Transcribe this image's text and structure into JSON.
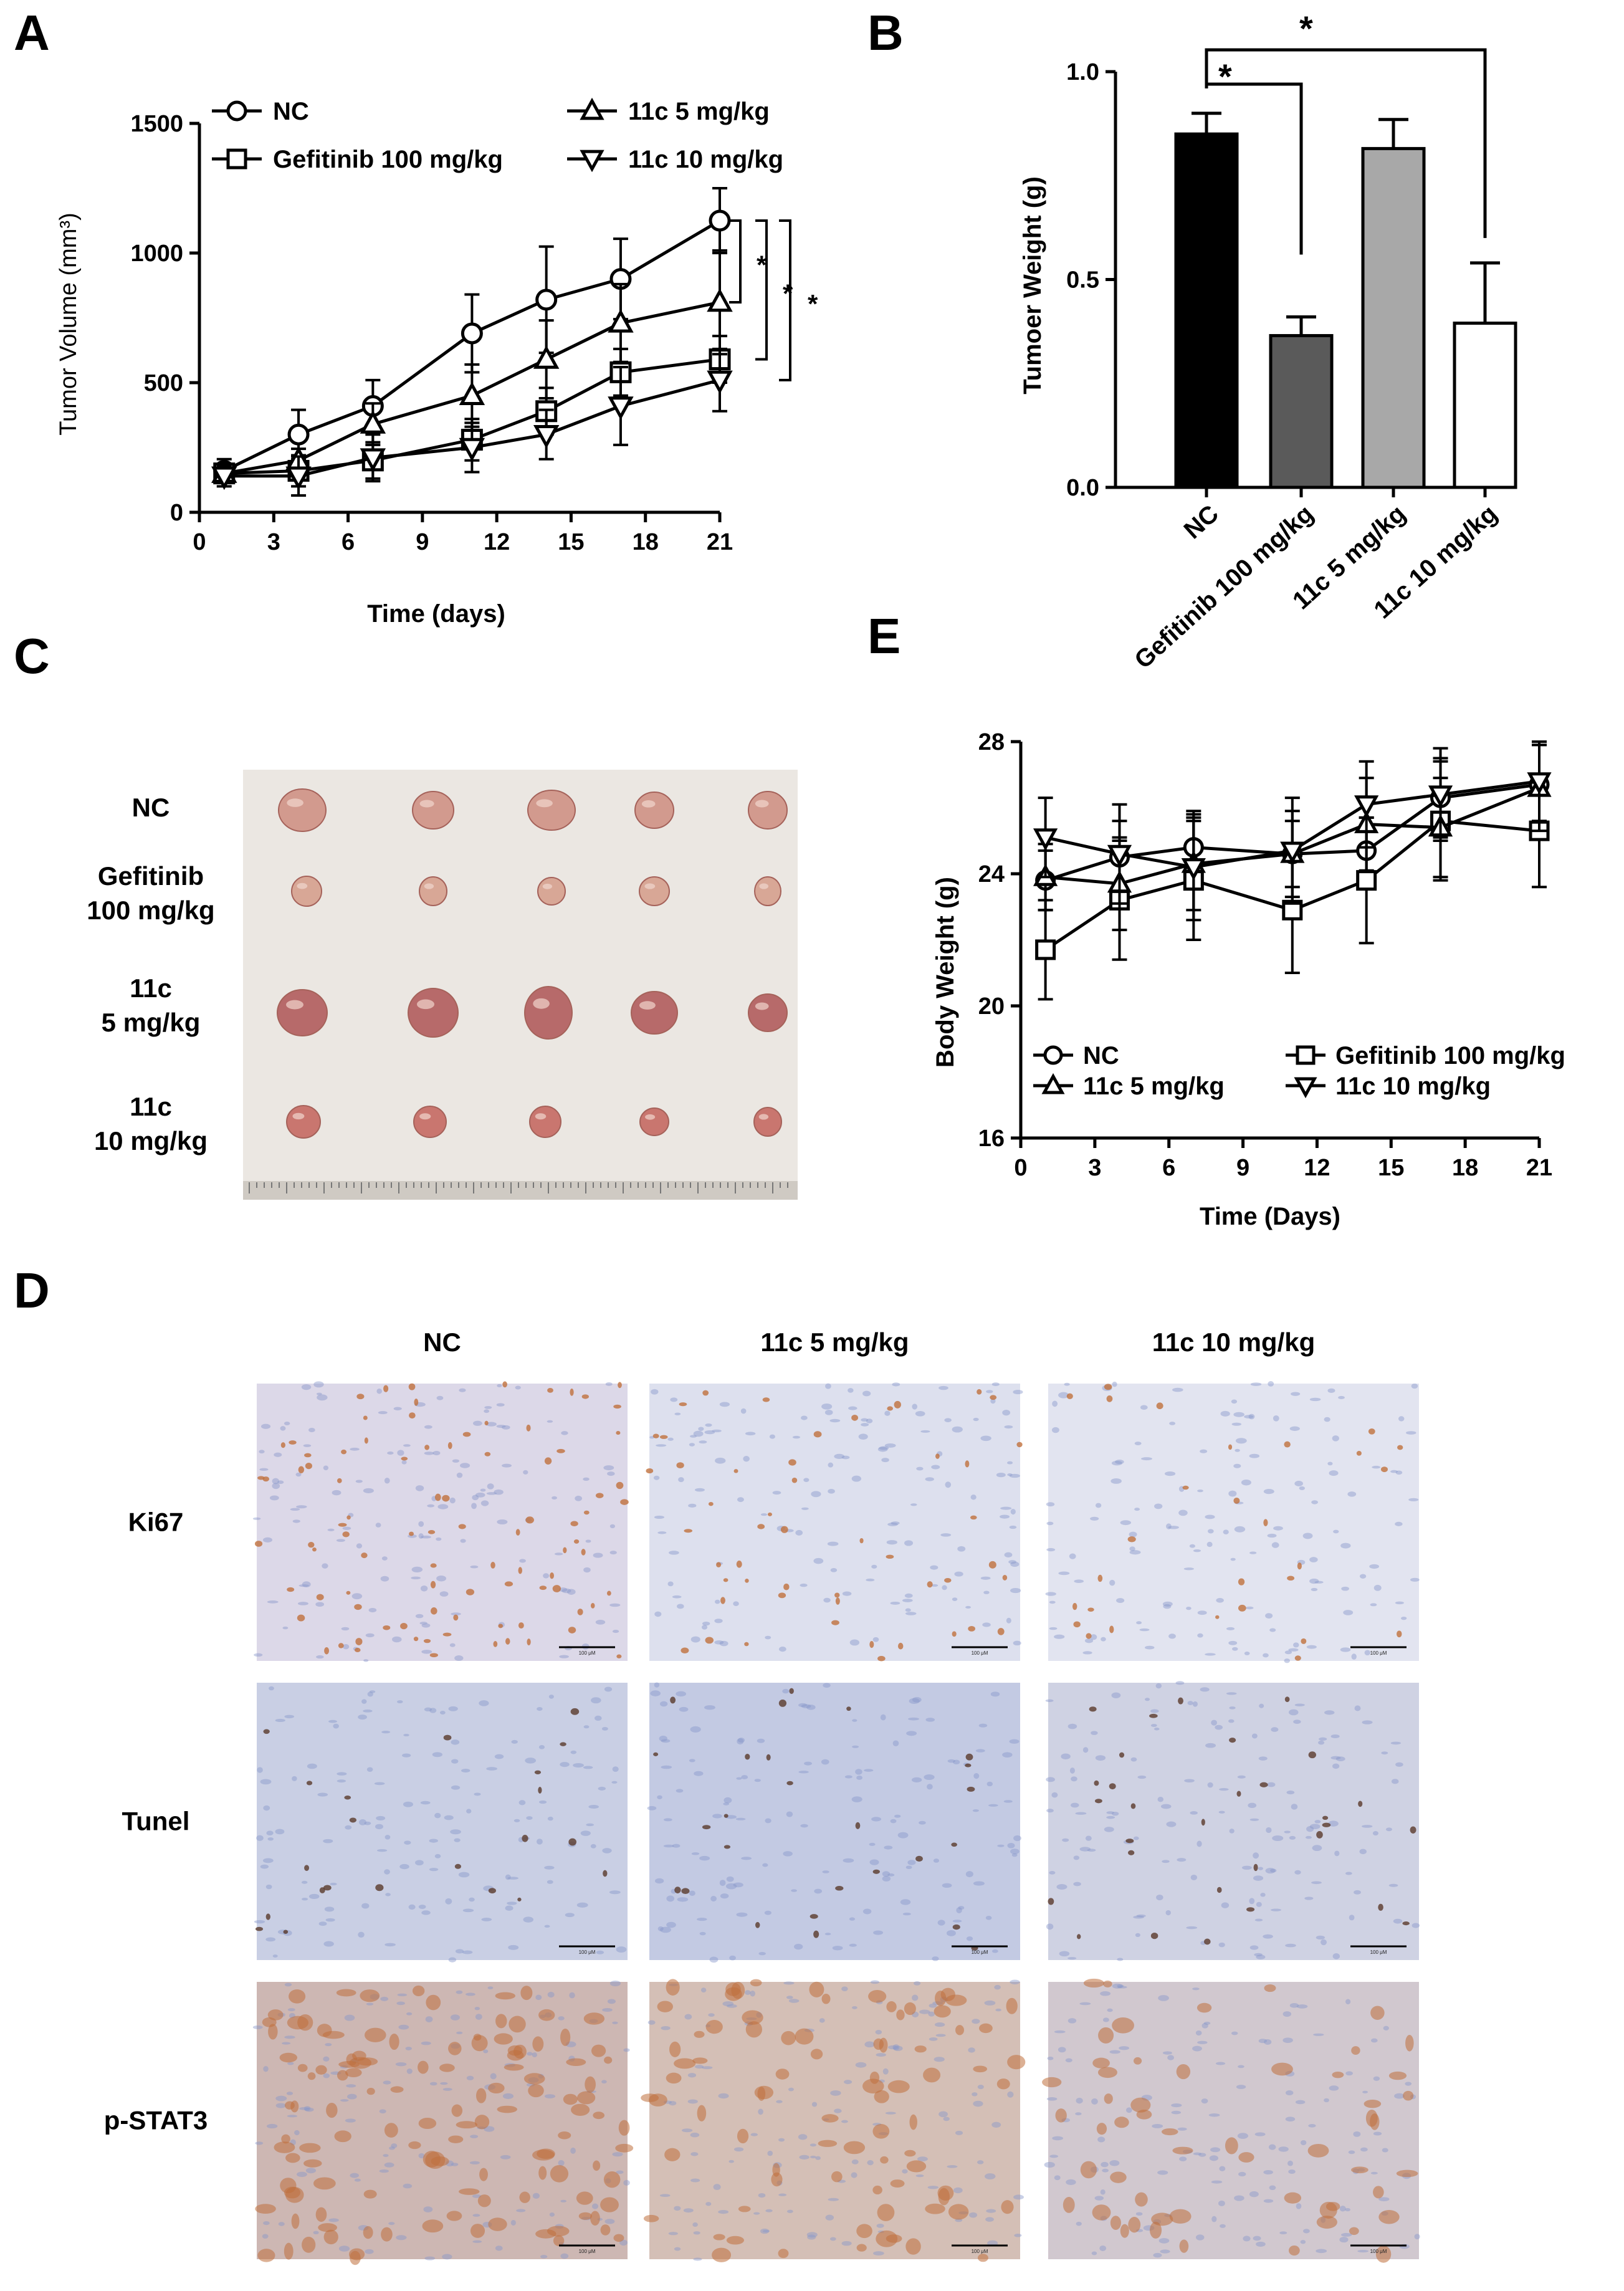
{
  "panel_labels": [
    "A",
    "B",
    "C",
    "D",
    "E"
  ],
  "colors": {
    "nc_bar": "#000000",
    "gefitinib_bar": "#5a5a5a",
    "c5_bar": "#a8a8a8",
    "c10_bar": "#ffffff",
    "photo_bg": "#e9e5e0",
    "tumor": "#c9867e",
    "ihc_bg": "#d7ddf0",
    "ihc_brown": "#b0653a",
    "ihc_blue": "#6c7fbf"
  },
  "chart_data": [
    {
      "id": "A",
      "type": "line",
      "xlabel": "Time (days)",
      "ylabel": "Tumor Volume (mm³)",
      "xlim": [
        0,
        21
      ],
      "ylim": [
        0,
        1500
      ],
      "xticks": [
        "0",
        "3",
        "6",
        "9",
        "12",
        "15",
        "18",
        "21"
      ],
      "yticks": [
        "0",
        "500",
        "1000",
        "1500"
      ],
      "legend_position": "top",
      "x": [
        1,
        4,
        7,
        11,
        14,
        17,
        21
      ],
      "series": [
        {
          "name": "NC",
          "marker": "circle",
          "values": [
            160,
            300,
            410,
            690,
            820,
            900,
            1125
          ],
          "errors": [
            45,
            95,
            100,
            150,
            205,
            155,
            125
          ]
        },
        {
          "name": "Gefitinib 100 mg/kg",
          "marker": "square",
          "values": [
            150,
            160,
            200,
            280,
            390,
            540,
            590
          ],
          "errors": [
            35,
            60,
            70,
            80,
            90,
            90,
            90
          ]
        },
        {
          "name": "11c 5 mg/kg",
          "marker": "triangle-up",
          "values": [
            150,
            200,
            340,
            450,
            590,
            730,
            810
          ],
          "errors": [
            35,
            45,
            80,
            120,
            150,
            150,
            200
          ]
        },
        {
          "name": "11c 10 mg/kg",
          "marker": "triangle-down",
          "values": [
            140,
            140,
            210,
            250,
            300,
            410,
            510
          ],
          "errors": [
            40,
            75,
            90,
            95,
            95,
            150,
            120
          ]
        }
      ],
      "significance": [
        "*",
        "*",
        "*"
      ]
    },
    {
      "id": "B",
      "type": "bar",
      "ylabel": "Tumoer Weight (g)",
      "ylim": [
        0,
        1.0
      ],
      "yticks": [
        "0.0",
        "0.5",
        "1.0"
      ],
      "categories": [
        "NC",
        "Gefitinib 100 mg/kg",
        "11c 5 mg/kg",
        "11c 10 mg/kg"
      ],
      "values": [
        0.85,
        0.365,
        0.815,
        0.395
      ],
      "errors": [
        0.05,
        0.045,
        0.07,
        0.145
      ],
      "significance": [
        "*",
        "*"
      ]
    },
    {
      "id": "E",
      "type": "line",
      "xlabel": "Time (Days)",
      "ylabel": "Body Weight (g)",
      "xlim": [
        0,
        21
      ],
      "ylim": [
        16,
        28
      ],
      "xticks": [
        "0",
        "3",
        "6",
        "9",
        "12",
        "15",
        "18",
        "21"
      ],
      "yticks": [
        "16",
        "20",
        "24",
        "28"
      ],
      "legend_position": "bottom",
      "x": [
        1,
        4,
        7,
        11,
        14,
        17,
        21
      ],
      "series": [
        {
          "name": "NC",
          "marker": "circle",
          "values": [
            23.8,
            24.5,
            24.8,
            24.6,
            24.7,
            26.3,
            26.7
          ],
          "errors": [
            0.9,
            1.1,
            1.1,
            1.0,
            1.0,
            1.2,
            1.2
          ]
        },
        {
          "name": "Gefitinib 100 mg/kg",
          "marker": "square",
          "values": [
            21.7,
            23.2,
            23.8,
            22.9,
            23.8,
            25.6,
            25.3
          ],
          "errors": [
            1.5,
            1.8,
            1.8,
            1.9,
            1.9,
            1.8,
            1.7
          ]
        },
        {
          "name": "11c 5 mg/kg",
          "marker": "triangle-up",
          "values": [
            23.9,
            23.7,
            24.3,
            24.6,
            25.5,
            25.4,
            26.6
          ],
          "errors": [
            1.0,
            1.4,
            1.4,
            1.3,
            1.4,
            1.5,
            1.3
          ]
        },
        {
          "name": "11c 10 mg/kg",
          "marker": "triangle-down",
          "values": [
            25.1,
            24.6,
            24.2,
            24.7,
            26.1,
            26.4,
            26.8
          ],
          "errors": [
            1.2,
            1.5,
            1.6,
            1.6,
            1.3,
            1.4,
            1.2
          ]
        }
      ]
    }
  ],
  "panel_c": {
    "row_labels": [
      [
        "NC"
      ],
      [
        "Gefitinib",
        "100 mg/kg"
      ],
      [
        "11c",
        "5 mg/kg"
      ],
      [
        "11c",
        "10 mg/kg"
      ]
    ]
  },
  "panel_d": {
    "columns": [
      "NC",
      "11c 5 mg/kg",
      "11c 10 mg/kg"
    ],
    "rows": [
      "Ki67",
      "Tunel",
      "p-STAT3"
    ],
    "scale_bar": "100 μM"
  }
}
